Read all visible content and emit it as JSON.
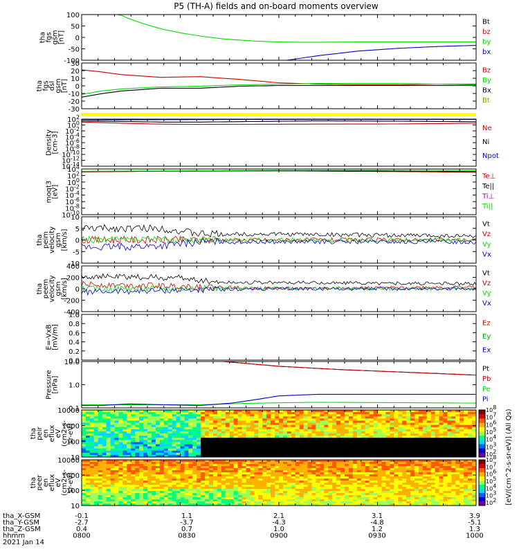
{
  "title": "P5 (TH-A) fields and on-board moments overview",
  "orbit": {
    "rows": [
      {
        "label": "tha_X-GSM",
        "values": [
          "-0.1",
          "1.1",
          "2.1",
          "3.1",
          "3.9"
        ]
      },
      {
        "label": "tha_Y-GSM",
        "values": [
          "-2.7",
          "-3.7",
          "-4.3",
          "-4.8",
          "-5.1"
        ]
      },
      {
        "label": "tha_Z-GSM",
        "values": [
          "0.4",
          "0.7",
          "1.0",
          "1.2",
          "1.3"
        ]
      },
      {
        "label": "hhmm",
        "values": [
          "0800",
          "0830",
          "0900",
          "0930",
          "1000"
        ]
      }
    ],
    "date": "2021 Jan 14"
  },
  "colorbar": {
    "label": "[eV/(cm^2-s-sr-eV)] (All Qs)",
    "top_ticks": [
      "10^8",
      "10^7",
      "10^6",
      "10^5",
      "10^4",
      "10^3",
      "10^2"
    ],
    "bottom_ticks": [
      "10^8",
      "10^7",
      "10^6",
      "10^5",
      "10^4",
      "10^3",
      "10^2"
    ],
    "colormap": [
      "#7f0000",
      "#d70000",
      "#ff5a00",
      "#ffb000",
      "#ffff00",
      "#9dff58",
      "#00ff7f",
      "#00d8ff",
      "#0064ff",
      "#0000c8",
      "#6a00a8"
    ]
  },
  "chart_data": [
    {
      "type": "line",
      "ylabel": [
        "tha",
        "fgs",
        "gsm",
        "[nT]"
      ],
      "yticks": [
        "100",
        "50",
        "0",
        "-50",
        "-100"
      ],
      "ylim": [
        -100,
        100
      ],
      "series": [
        {
          "name": "Bt",
          "color": "#000000",
          "x": [],
          "y": []
        },
        {
          "name": "bz",
          "color": "#cc0000",
          "x": [],
          "y": []
        },
        {
          "name": "by",
          "color": "#00dd00",
          "x": [
            0.09,
            0.12,
            0.16,
            0.2,
            0.25,
            0.3,
            0.35,
            0.4,
            0.45,
            0.5,
            0.55,
            0.6,
            0.7,
            0.8,
            0.9,
            1.0
          ],
          "y": [
            105,
            82,
            58,
            38,
            20,
            6,
            -5,
            -12,
            -17,
            -20,
            -21,
            -21,
            -20,
            -20,
            -20,
            -20
          ]
        },
        {
          "name": "bx",
          "color": "#0000cc",
          "x": [
            0.52,
            0.6,
            0.7,
            0.8,
            0.9,
            1.0
          ],
          "y": [
            -100,
            -80,
            -60,
            -48,
            -40,
            -35
          ]
        }
      ]
    },
    {
      "type": "line",
      "ylabel": [
        "tha",
        "fgs",
        "dsl",
        "gsm",
        "[nT]"
      ],
      "yticks": [
        "30",
        "20",
        "10",
        "0",
        "-10",
        "-20",
        "-30"
      ],
      "ylim": [
        -35,
        32
      ],
      "series": [
        {
          "name": "Bz",
          "color": "#cc0000",
          "x": [
            0.0,
            0.05,
            0.1,
            0.2,
            0.3,
            0.4,
            0.5,
            0.6,
            0.7,
            0.8,
            0.9,
            1.0
          ],
          "y": [
            22,
            19,
            15,
            11,
            12,
            8,
            3,
            1,
            0,
            0,
            1,
            1
          ]
        },
        {
          "name": "By",
          "color": "#00dd00",
          "x": [
            0.0,
            0.05,
            0.1,
            0.2,
            0.3,
            0.4,
            0.5,
            0.6,
            0.7,
            0.8,
            0.9,
            1.0
          ],
          "y": [
            -14,
            -9,
            -6,
            -3,
            -2,
            0,
            1,
            2,
            2,
            2,
            1,
            0
          ]
        },
        {
          "name": "Bx",
          "color": "#000000",
          "x": [
            0.0,
            0.05,
            0.1,
            0.2,
            0.3,
            0.4,
            0.5,
            0.6,
            0.7,
            0.8,
            0.9,
            1.0
          ],
          "y": [
            -18,
            -13,
            -9,
            -5,
            -5,
            -2,
            -1,
            -1,
            -1,
            -1,
            -1,
            -1
          ]
        },
        {
          "name": "Bt",
          "color": "#9a9a00",
          "x": [],
          "y": []
        }
      ]
    },
    {
      "type": "line",
      "ylabel": [
        "Density",
        "[cm-3]"
      ],
      "yticks": [
        "10^2",
        "10^0",
        "10^-2",
        "10^-4",
        "10^-6",
        "10^-8",
        "10^-10",
        "10^-12",
        "10^-14"
      ],
      "ylim": [
        -14,
        2
      ],
      "log": true,
      "series": [
        {
          "name": "Ne",
          "color": "#cc0000",
          "x": [
            0,
            0.1,
            0.2,
            0.3,
            0.45,
            0.6,
            0.8,
            1.0
          ],
          "y": [
            1.0,
            0.6,
            0.3,
            0.2,
            0.25,
            0.3,
            0.35,
            0.6
          ]
        },
        {
          "name": "Ni",
          "color": "#000000",
          "x": [
            0,
            0.1,
            0.2,
            0.3,
            0.45,
            0.6,
            0.8,
            1.0
          ],
          "y": [
            1.3,
            1.2,
            1.0,
            1.0,
            1.2,
            1.4,
            1.3,
            1.1
          ]
        },
        {
          "name": "Npot",
          "color": "#0000cc",
          "x": [
            0,
            0.2,
            0.5,
            0.8,
            1.0
          ],
          "y": [
            1.7,
            1.8,
            1.9,
            1.9,
            1.9
          ]
        }
      ]
    },
    {
      "type": "line",
      "ylabel": [
        "moqt3",
        "[eV]"
      ],
      "yticks": [
        "10^4",
        "10^2",
        "10^0",
        "10^-2",
        "10^-4",
        "10^-6",
        "10^-8",
        "10^-10"
      ],
      "ylim": [
        -10,
        4
      ],
      "log": true,
      "series": [
        {
          "name": "Te⊥",
          "color": "#cc0000",
          "x": [
            0,
            0.2,
            0.5,
            0.8,
            1.0
          ],
          "y": [
            3.1,
            3.3,
            3.4,
            3.2,
            3.0
          ]
        },
        {
          "name": "Te||",
          "color": "#000000",
          "x": [
            0,
            0.2,
            0.5,
            0.8,
            1.0
          ],
          "y": [
            3.2,
            3.35,
            3.5,
            3.3,
            3.2
          ]
        },
        {
          "name": "Ti⊥",
          "color": "#9900aa",
          "x": [],
          "y": []
        },
        {
          "name": "Ti||",
          "color": "#00dd00",
          "x": [
            0,
            0.2,
            0.5,
            0.8,
            1.0
          ],
          "y": [
            3.3,
            3.4,
            3.6,
            3.6,
            3.5
          ]
        }
      ]
    },
    {
      "type": "line",
      "ylabel": [
        "tha",
        "peim",
        "velocity",
        "gsm",
        "[km/s]"
      ],
      "yticks": [
        "10",
        "5",
        "0",
        "-5",
        "-10"
      ],
      "ylim": [
        -12,
        12
      ],
      "series": [
        {
          "name": "Vt",
          "color": "#000000",
          "x": [
            0,
            0.2,
            0.3,
            0.5,
            1.0
          ],
          "y": [
            6,
            6,
            3,
            3,
            2
          ]
        },
        {
          "name": "Vz",
          "color": "#cc0000",
          "x": [
            0,
            0.3,
            1.0
          ],
          "y": [
            0,
            0,
            0
          ]
        },
        {
          "name": "Vy",
          "color": "#00dd00",
          "x": [
            0,
            0.3,
            1.0
          ],
          "y": [
            0,
            0,
            0
          ]
        },
        {
          "name": "Vx",
          "color": "#0000cc",
          "x": [
            0,
            0.2,
            0.3,
            1.0
          ],
          "y": [
            -4,
            -3,
            -1,
            -1
          ]
        }
      ]
    },
    {
      "type": "line",
      "ylabel": [
        "tha",
        "peem",
        "velocity",
        "gsm",
        "[km/s]"
      ],
      "yticks": [
        "400",
        "200",
        "0",
        "-200",
        "-400"
      ],
      "ylim": [
        -420,
        420
      ],
      "series": [
        {
          "name": "Vt",
          "color": "#000000",
          "x": [
            0,
            0.25,
            0.35,
            0.6,
            1.0
          ],
          "y": [
            230,
            200,
            120,
            110,
            90
          ]
        },
        {
          "name": "Vz",
          "color": "#cc0000",
          "x": [
            0,
            0.3,
            0.5,
            1.0
          ],
          "y": [
            80,
            40,
            0,
            30
          ]
        },
        {
          "name": "Vy",
          "color": "#00dd00",
          "x": [
            0,
            0.3,
            1.0
          ],
          "y": [
            0,
            10,
            0
          ]
        },
        {
          "name": "Vx",
          "color": "#0000cc",
          "x": [
            0,
            0.3,
            0.5,
            1.0
          ],
          "y": [
            -60,
            -20,
            0,
            0
          ]
        }
      ]
    },
    {
      "type": "line",
      "ylabel": [
        "E=-VxB",
        "[mV/m]"
      ],
      "yticks": [
        "1.0",
        "0.8",
        "0.6",
        "0.4",
        "0.2",
        "0.0"
      ],
      "ylim": [
        0,
        1
      ],
      "series": [
        {
          "name": "Ez",
          "color": "#cc0000",
          "x": [],
          "y": []
        },
        {
          "name": "Ey",
          "color": "#00aa00",
          "x": [],
          "y": []
        },
        {
          "name": "Ex",
          "color": "#0000cc",
          "x": [],
          "y": []
        }
      ]
    },
    {
      "type": "line",
      "ylabel": [
        "Pressure",
        "[nPa]"
      ],
      "yticks": [
        "10.0",
        "1.0",
        "0.1"
      ],
      "ylim": [
        -1.5,
        1.4
      ],
      "log": true,
      "series": [
        {
          "name": "Pt",
          "color": "#000000",
          "x": [
            0.36,
            0.5,
            0.65,
            0.8,
            1.0
          ],
          "y": [
            1.4,
            1.1,
            0.9,
            0.75,
            0.55
          ]
        },
        {
          "name": "Pb",
          "color": "#cc0000",
          "x": [
            0.36,
            0.5,
            0.65,
            0.8,
            1.0
          ],
          "y": [
            1.4,
            1.1,
            0.9,
            0.75,
            0.55
          ]
        },
        {
          "name": "Pe",
          "color": "#00dd00",
          "x": [
            0,
            0.3,
            0.45,
            0.6,
            1.0
          ],
          "y": [
            -1.3,
            -1.3,
            -1.2,
            -1.15,
            -1.2
          ]
        },
        {
          "name": "Pi",
          "color": "#0000cc",
          "x": [
            0,
            0.05,
            0.12,
            0.2,
            0.3,
            0.38,
            0.45,
            0.5,
            0.6,
            0.8,
            1.0
          ],
          "y": [
            -1.35,
            -1.35,
            -1.25,
            -1.3,
            -1.35,
            -1.2,
            -0.95,
            -0.75,
            -0.65,
            -0.65,
            -0.65
          ]
        }
      ]
    },
    {
      "type": "heatmap",
      "ylabel": [
        "tha",
        "peir",
        "en",
        "eflux",
        "eV",
        "(cm2-s-",
        "sr-eV)"
      ],
      "yticks": [
        "10000",
        "1000",
        "100",
        "10"
      ]
    },
    {
      "type": "heatmap",
      "ylabel": [
        "tha",
        "peer",
        "en",
        "eflux",
        "eV",
        "(cm2-s-",
        "sr-eV)"
      ],
      "yticks": [
        "10000",
        "1000",
        "100",
        "10"
      ]
    }
  ]
}
